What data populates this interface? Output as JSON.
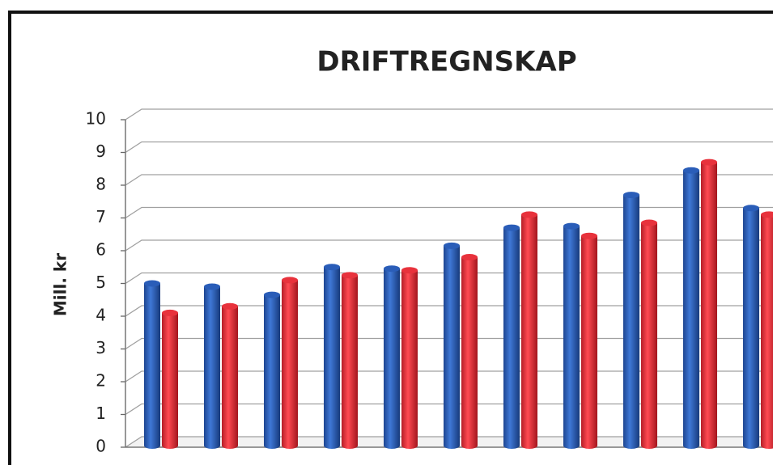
{
  "chart_data": {
    "type": "bar",
    "title": "DRIFTREGNSKAP",
    "y_label": "Mill. kr",
    "categories": [
      null,
      null,
      null,
      null,
      null,
      null,
      null,
      null,
      null,
      null,
      null
    ],
    "series": [
      {
        "color": "#2a5db8",
        "values": [
          5.1,
          5.0,
          4.75,
          5.6,
          5.55,
          6.25,
          6.8,
          6.85,
          7.8,
          8.55,
          7.4
        ]
      },
      {
        "color": "#e8323c",
        "values": [
          4.2,
          4.4,
          5.2,
          5.35,
          5.5,
          5.9,
          7.2,
          6.55,
          6.95,
          8.8,
          7.2
        ]
      }
    ],
    "ylim": [
      0,
      10
    ],
    "yticks": [
      0,
      1,
      2,
      3,
      4,
      5,
      6,
      7,
      8,
      9,
      10
    ],
    "grid": true
  }
}
